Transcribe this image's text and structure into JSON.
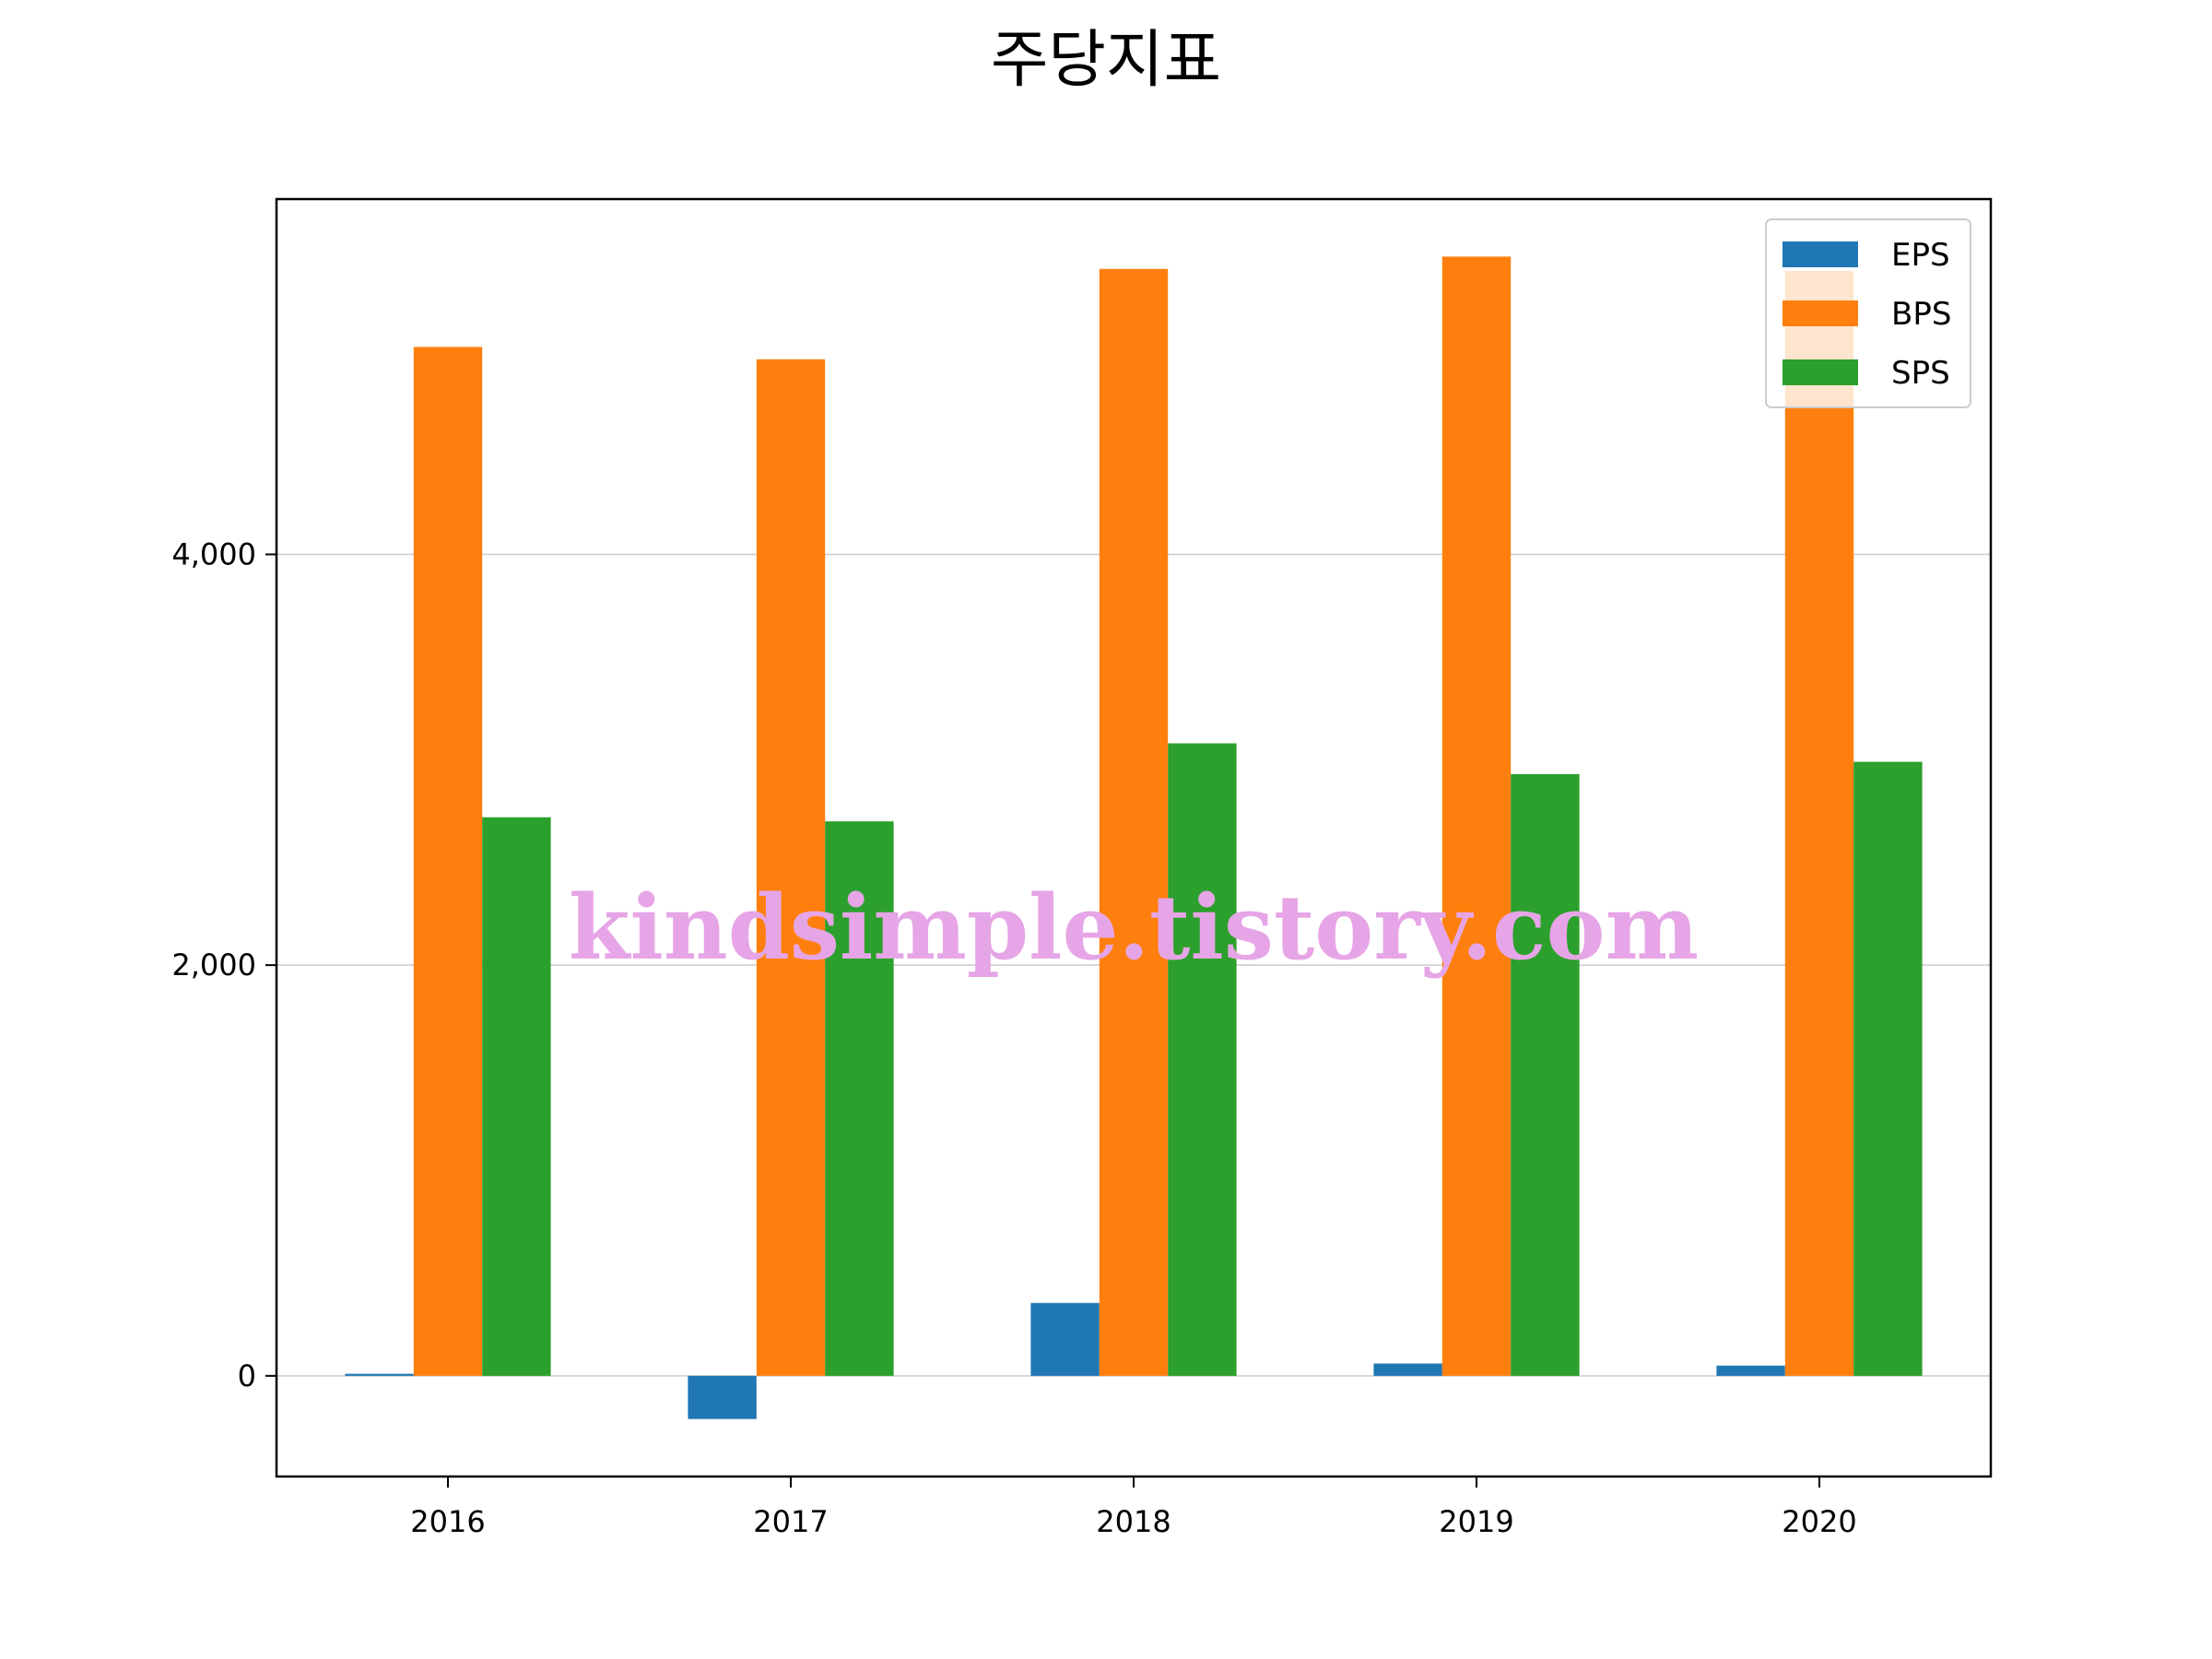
{
  "chart_data": {
    "type": "bar",
    "title": "주당지표",
    "categories": [
      "2016",
      "2017",
      "2018",
      "2019",
      "2020"
    ],
    "series": [
      {
        "name": "EPS",
        "color": "#1f77b4",
        "values": [
          10,
          -210,
          355,
          60,
          50
        ]
      },
      {
        "name": "BPS",
        "color": "#ff7f0e",
        "values": [
          5010,
          4950,
          5390,
          5450,
          5380
        ]
      },
      {
        "name": "SPS",
        "color": "#2ca02c",
        "values": [
          2720,
          2700,
          3080,
          2930,
          2990
        ]
      }
    ],
    "yticks": [
      "0",
      "2,000",
      "4,000"
    ],
    "ytick_values": [
      0,
      2000,
      4000
    ],
    "ylim": [
      -490,
      5730
    ],
    "grid": "horizontal",
    "legend_position": "top-right"
  },
  "watermark": "kindsimple.tistory.com"
}
